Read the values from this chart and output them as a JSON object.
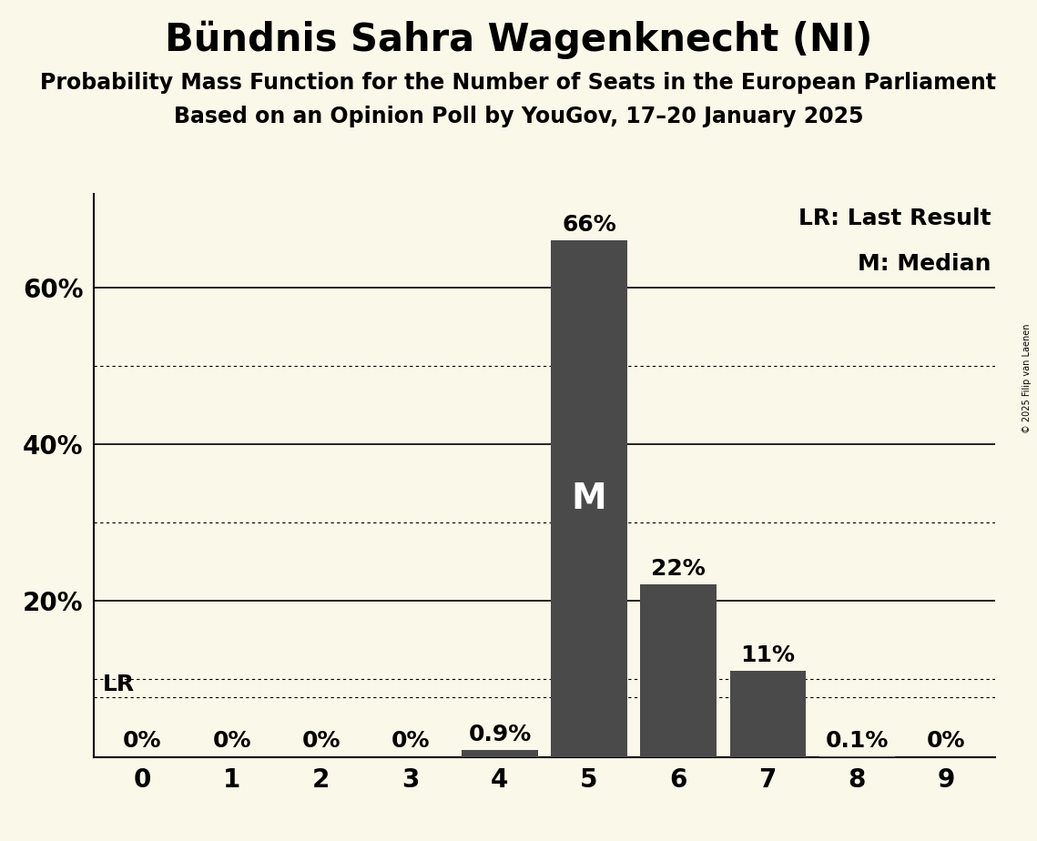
{
  "title": "Bündnis Sahra Wagenknecht (NI)",
  "subtitle1": "Probability Mass Function for the Number of Seats in the European Parliament",
  "subtitle2": "Based on an Opinion Poll by YouGov, 17–20 January 2025",
  "copyright": "© 2025 Filip van Laenen",
  "seats": [
    0,
    1,
    2,
    3,
    4,
    5,
    6,
    7,
    8,
    9
  ],
  "probabilities": [
    0.0,
    0.0,
    0.0,
    0.0,
    0.009,
    0.66,
    0.22,
    0.11,
    0.001,
    0.0
  ],
  "bar_labels": [
    "0%",
    "0%",
    "0%",
    "0%",
    "0.9%",
    "66%",
    "22%",
    "11%",
    "0.1%",
    "0%"
  ],
  "bar_color": "#4a4a4a",
  "background_color": "#faf8e8",
  "median_seat": 5,
  "lr_value": 0.076,
  "lr_label": "LR",
  "lr_text": "LR: Last Result",
  "m_text": "M: Median",
  "ylim": [
    0,
    0.72
  ],
  "solid_yticks": [
    0.2,
    0.4,
    0.6
  ],
  "solid_ytick_labels": [
    "20%",
    "40%",
    "60%"
  ],
  "dotted_yticks": [
    0.1,
    0.3,
    0.5
  ],
  "title_fontsize": 30,
  "subtitle_fontsize": 17,
  "tick_fontsize": 20,
  "annotation_fontsize": 18,
  "m_fontsize": 28
}
